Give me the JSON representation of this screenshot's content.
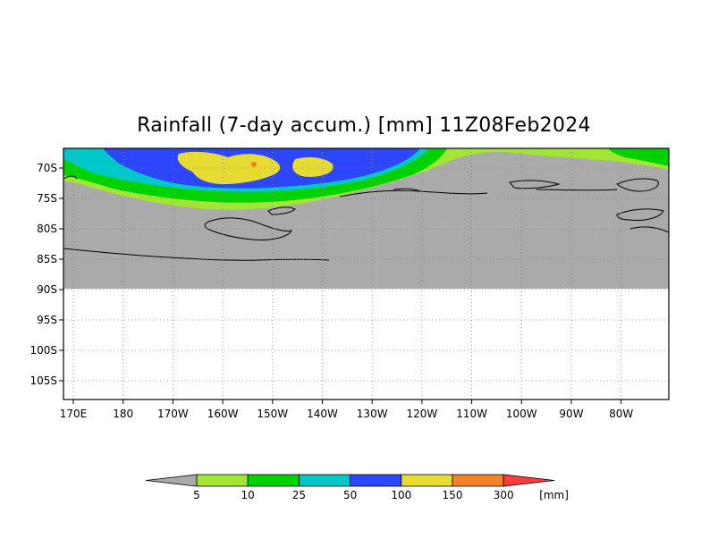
{
  "title": "Rainfall (7-day accum.) [mm] 11Z08Feb2024",
  "map": {
    "lon_labels": [
      "170E",
      "180",
      "170W",
      "160W",
      "150W",
      "140W",
      "130W",
      "120W",
      "110W",
      "100W",
      "90W",
      "80W"
    ],
    "lat_labels": [
      "70S",
      "75S",
      "80S",
      "85S",
      "90S",
      "95S",
      "100S",
      "105S"
    ],
    "land_color": "#aaaaaa",
    "grid": "dotted"
  },
  "legend": {
    "unit": "[mm]",
    "ticks": [
      "5",
      "10",
      "25",
      "50",
      "100",
      "150",
      "300"
    ],
    "colors": [
      "#aaaaaa",
      "#a0e632",
      "#00d200",
      "#00c8c8",
      "#2d46fa",
      "#e6dc32",
      "#f08228",
      "#fa3c3c"
    ]
  }
}
